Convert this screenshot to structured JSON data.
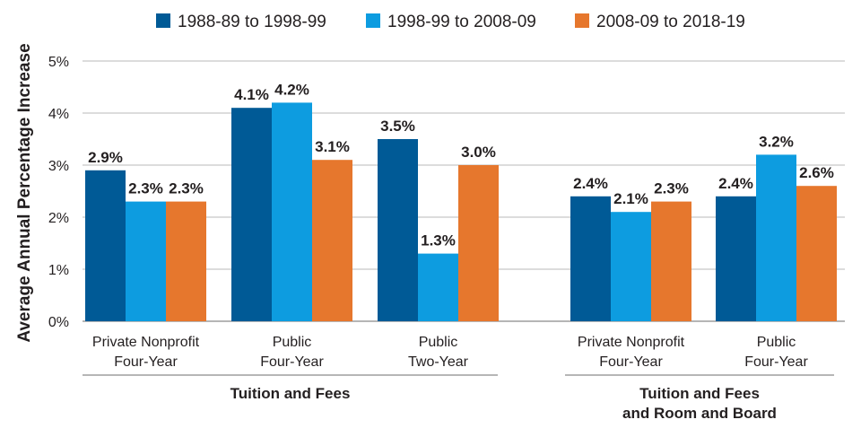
{
  "chart_data": {
    "type": "bar",
    "ylabel": "Average Annual Percentage Increase",
    "ylim": [
      0,
      5
    ],
    "yticks": [
      0,
      1,
      2,
      3,
      4,
      5
    ],
    "ytick_labels": [
      "0%",
      "1%",
      "2%",
      "3%",
      "4%",
      "5%"
    ],
    "grid": true,
    "legend_position": "top-center",
    "series": [
      {
        "name": "1988-89 to 1998-99",
        "color": "#005a96",
        "values": [
          2.9,
          4.1,
          3.5,
          2.4,
          2.4
        ]
      },
      {
        "name": "1998-99 to 2008-09",
        "color": "#0d9ce0",
        "values": [
          2.3,
          4.2,
          1.3,
          2.1,
          3.2
        ]
      },
      {
        "name": "2008-09 to 2018-19",
        "color": "#e6772d",
        "values": [
          2.3,
          3.1,
          3.0,
          2.3,
          2.6
        ]
      }
    ],
    "data_labels": [
      [
        "2.9%",
        "4.1%",
        "3.5%",
        "2.4%",
        "2.4%"
      ],
      [
        "2.3%",
        "4.2%",
        "1.3%",
        "2.1%",
        "3.2%"
      ],
      [
        "2.3%",
        "3.1%",
        "3.0%",
        "2.3%",
        "2.6%"
      ]
    ],
    "categories": [
      [
        "Private Nonprofit",
        "Four-Year"
      ],
      [
        "Public",
        "Four-Year"
      ],
      [
        "Public",
        "Two-Year"
      ],
      [
        "Private Nonprofit",
        "Four-Year"
      ],
      [
        "Public",
        "Four-Year"
      ]
    ],
    "groups": [
      {
        "label": [
          "Tuition and Fees"
        ],
        "categories": [
          0,
          1,
          2
        ]
      },
      {
        "label": [
          "Tuition and Fees",
          "and Room and Board"
        ],
        "categories": [
          3,
          4
        ]
      }
    ]
  }
}
